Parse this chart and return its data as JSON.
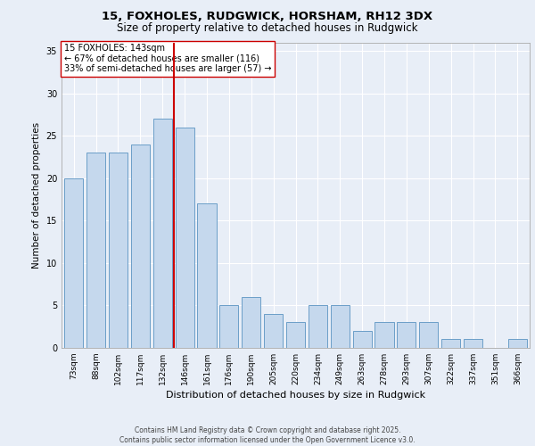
{
  "title1": "15, FOXHOLES, RUDGWICK, HORSHAM, RH12 3DX",
  "title2": "Size of property relative to detached houses in Rudgwick",
  "xlabel": "Distribution of detached houses by size in Rudgwick",
  "ylabel": "Number of detached properties",
  "categories": [
    "73sqm",
    "88sqm",
    "102sqm",
    "117sqm",
    "132sqm",
    "146sqm",
    "161sqm",
    "176sqm",
    "190sqm",
    "205sqm",
    "220sqm",
    "234sqm",
    "249sqm",
    "263sqm",
    "278sqm",
    "293sqm",
    "307sqm",
    "322sqm",
    "337sqm",
    "351sqm",
    "366sqm"
  ],
  "values": [
    20,
    23,
    23,
    24,
    27,
    26,
    17,
    5,
    6,
    4,
    3,
    5,
    5,
    2,
    3,
    3,
    3,
    1,
    1,
    0,
    1
  ],
  "bar_color": "#c5d8ed",
  "bar_edge_color": "#6b9ec8",
  "vline_x_index": 5,
  "vline_color": "#cc0000",
  "annotation_text": "15 FOXHOLES: 143sqm\n← 67% of detached houses are smaller (116)\n33% of semi-detached houses are larger (57) →",
  "annotation_box_color": "#ffffff",
  "annotation_box_edge": "#cc0000",
  "ylim": [
    0,
    36
  ],
  "yticks": [
    0,
    5,
    10,
    15,
    20,
    25,
    30,
    35
  ],
  "footer": "Contains HM Land Registry data © Crown copyright and database right 2025.\nContains public sector information licensed under the Open Government Licence v3.0.",
  "bg_color": "#e8eef7",
  "plot_bg_color": "#e8eef7",
  "grid_color": "#ffffff",
  "title1_fontsize": 9.5,
  "title2_fontsize": 8.5,
  "xlabel_fontsize": 8,
  "ylabel_fontsize": 7.5,
  "tick_fontsize": 6.5,
  "annotation_fontsize": 7,
  "footer_fontsize": 5.5
}
